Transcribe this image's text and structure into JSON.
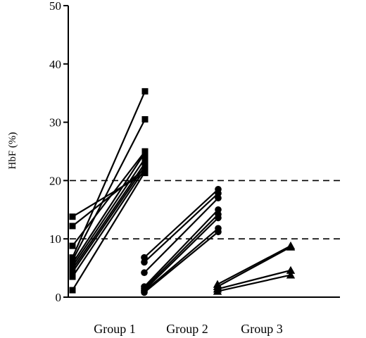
{
  "chart_data": {
    "type": "scatter",
    "title": "",
    "ylabel": "HbF (%)",
    "xlabel": "",
    "ylim": [
      0,
      50
    ],
    "yticks": [
      0,
      10,
      20,
      30,
      40,
      50
    ],
    "grid": false,
    "reference_lines": [
      20,
      10
    ],
    "categories": [
      "Group 1",
      "Group 2",
      "Group 3"
    ],
    "groups": [
      {
        "name": "Group 1",
        "marker": "square",
        "pairs": [
          [
            13.8,
            21.3
          ],
          [
            12.2,
            22.0
          ],
          [
            8.8,
            25.0
          ],
          [
            6.8,
            35.3
          ],
          [
            6.3,
            30.5
          ],
          [
            5.8,
            24.8
          ],
          [
            5.3,
            23.8
          ],
          [
            4.8,
            23.0
          ],
          [
            4.3,
            22.5
          ],
          [
            3.5,
            22.0
          ],
          [
            1.2,
            21.5
          ]
        ]
      },
      {
        "name": "Group 2",
        "marker": "circle",
        "pairs": [
          [
            6.8,
            18.5
          ],
          [
            6.0,
            17.8
          ],
          [
            4.2,
            17.0
          ],
          [
            1.8,
            15.0
          ],
          [
            1.5,
            14.2
          ],
          [
            1.2,
            13.6
          ],
          [
            1.0,
            11.8
          ],
          [
            0.8,
            11.2
          ]
        ]
      },
      {
        "name": "Group 3",
        "marker": "triangle",
        "pairs": [
          [
            2.2,
            8.8
          ],
          [
            1.8,
            8.6
          ],
          [
            1.4,
            4.6
          ],
          [
            1.0,
            3.8
          ]
        ]
      }
    ]
  }
}
